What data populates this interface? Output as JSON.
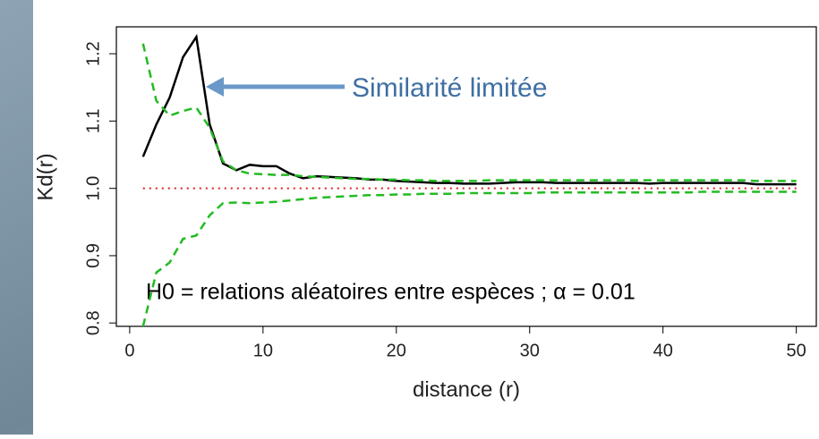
{
  "chart_data": {
    "type": "line",
    "xlabel": "distance (r)",
    "ylabel": "Kd(r)",
    "annotations": [
      "Similarité limitée",
      "H0 = relations aléatoires entre espèces ; α = 0.01"
    ],
    "x": [
      1,
      2,
      3,
      4,
      5,
      6,
      7,
      8,
      9,
      10,
      11,
      12,
      13,
      14,
      15,
      16,
      17,
      18,
      19,
      20,
      21,
      22,
      23,
      24,
      25,
      26,
      27,
      28,
      29,
      30,
      31,
      32,
      33,
      34,
      35,
      36,
      37,
      38,
      39,
      40,
      41,
      42,
      43,
      44,
      45,
      46,
      47,
      48,
      49,
      50
    ],
    "series": [
      {
        "color": "#000000",
        "style": "solid",
        "values": [
          1.047,
          1.095,
          1.135,
          1.195,
          1.225,
          1.095,
          1.037,
          1.027,
          1.035,
          1.033,
          1.033,
          1.022,
          1.015,
          1.018,
          1.017,
          1.016,
          1.015,
          1.013,
          1.013,
          1.011,
          1.01,
          1.009,
          1.008,
          1.008,
          1.007,
          1.007,
          1.007,
          1.008,
          1.009,
          1.009,
          1.009,
          1.008,
          1.008,
          1.008,
          1.008,
          1.008,
          1.008,
          1.008,
          1.007,
          1.008,
          1.008,
          1.008,
          1.008,
          1.008,
          1.008,
          1.008,
          1.006,
          1.006,
          1.006,
          1.006
        ]
      },
      {
        "color": "#22bb22",
        "style": "dashed",
        "values": [
          1.215,
          1.13,
          1.108,
          1.115,
          1.12,
          1.09,
          1.04,
          1.027,
          1.022,
          1.021,
          1.02,
          1.02,
          1.018,
          1.017,
          1.016,
          1.015,
          1.014,
          1.014,
          1.013,
          1.013,
          1.012,
          1.012,
          1.011,
          1.011,
          1.011,
          1.011,
          1.012,
          1.012,
          1.012,
          1.012,
          1.012,
          1.012,
          1.012,
          1.012,
          1.012,
          1.012,
          1.012,
          1.012,
          1.012,
          1.012,
          1.012,
          1.012,
          1.012,
          1.012,
          1.012,
          1.012,
          1.011,
          1.011,
          1.011,
          1.011
        ]
      },
      {
        "color": "#22bb22",
        "style": "dashed",
        "values": [
          0.795,
          0.875,
          0.89,
          0.925,
          0.93,
          0.96,
          0.978,
          0.979,
          0.978,
          0.979,
          0.98,
          0.982,
          0.984,
          0.986,
          0.987,
          0.988,
          0.989,
          0.99,
          0.99,
          0.991,
          0.991,
          0.992,
          0.992,
          0.992,
          0.993,
          0.993,
          0.993,
          0.993,
          0.993,
          0.993,
          0.994,
          0.994,
          0.994,
          0.994,
          0.994,
          0.994,
          0.994,
          0.994,
          0.994,
          0.994,
          0.994,
          0.994,
          0.995,
          0.995,
          0.995,
          0.995,
          0.995,
          0.995,
          0.995,
          0.995
        ]
      }
    ],
    "hline": {
      "value": 1,
      "color": "#e02020",
      "style": "dotted"
    },
    "xlim": [
      -1,
      51.5
    ],
    "ylim": [
      0.795,
      1.24
    ],
    "xticks": [
      0,
      10,
      20,
      30,
      40,
      50
    ],
    "yticks": [
      0.8,
      0.9,
      {
        "value": 1,
        "label": "1.0"
      },
      1.1,
      1.2
    ]
  }
}
